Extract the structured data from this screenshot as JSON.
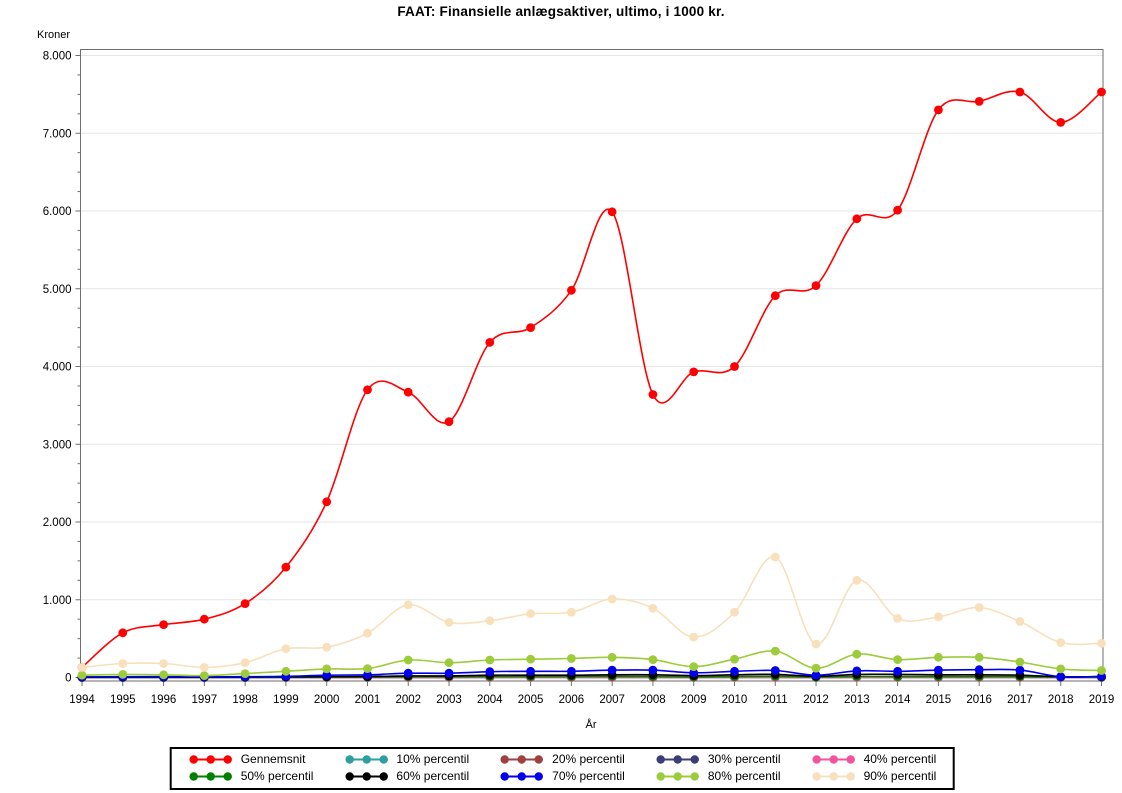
{
  "chart_data": {
    "type": "line",
    "title": "FAAT: Finansielle anlægsaktiver, ultimo, i 1000 kr.",
    "xlabel": "År",
    "ylabel": "Kroner",
    "x": [
      1994,
      1995,
      1996,
      1997,
      1998,
      1999,
      2000,
      2001,
      2002,
      2003,
      2004,
      2005,
      2006,
      2007,
      2008,
      2009,
      2010,
      2011,
      2012,
      2013,
      2014,
      2015,
      2016,
      2017,
      2018,
      2019
    ],
    "ylim": [
      0,
      8000
    ],
    "ytick_interval": 1000,
    "ytick_minor_interval": 250,
    "ytick_labels": [
      "0",
      "1.000",
      "2.000",
      "3.000",
      "4.000",
      "5.000",
      "6.000",
      "7.000",
      "8.000"
    ],
    "grid": true,
    "grid_color": "#E6E6E6",
    "frame_color": "#6E6E6E",
    "legend_position": "bottom",
    "marker": "circle",
    "smooth": true,
    "series": [
      {
        "name": "Gennemsnit",
        "color": "#FF0000",
        "values": [
          130,
          575,
          680,
          750,
          950,
          1420,
          2260,
          3700,
          3670,
          3290,
          4310,
          4500,
          4980,
          5990,
          3640,
          3930,
          4000,
          4910,
          5040,
          5900,
          6010,
          7300,
          7410,
          7530,
          7140,
          7530
        ]
      },
      {
        "name": "10% percentil",
        "color": "#2E9E9E",
        "values": [
          0,
          0,
          0,
          0,
          0,
          0,
          0,
          0,
          0,
          0,
          0,
          0,
          0,
          0,
          0,
          0,
          0,
          0,
          0,
          0,
          0,
          0,
          0,
          0,
          0,
          0
        ]
      },
      {
        "name": "20% percentil",
        "color": "#A04040",
        "values": [
          0,
          0,
          0,
          0,
          0,
          0,
          1,
          1,
          1,
          1,
          2,
          2,
          2,
          2,
          2,
          1,
          2,
          2,
          1,
          2,
          2,
          2,
          2,
          2,
          1,
          1
        ]
      },
      {
        "name": "30% percentil",
        "color": "#3C3C78",
        "values": [
          1,
          1,
          1,
          1,
          1,
          1,
          2,
          2,
          3,
          3,
          4,
          4,
          4,
          5,
          5,
          3,
          5,
          6,
          2,
          5,
          5,
          5,
          5,
          4,
          2,
          2
        ]
      },
      {
        "name": "40% percentil",
        "color": "#F2549C",
        "values": [
          0,
          0,
          0,
          0,
          0,
          0,
          0,
          0,
          0,
          0,
          0,
          0,
          0,
          0,
          0,
          0,
          0,
          0,
          0,
          0,
          0,
          0,
          0,
          0,
          0,
          0
        ]
      },
      {
        "name": "50% percentil",
        "color": "#008000",
        "values": [
          2,
          2,
          2,
          2,
          3,
          4,
          5,
          6,
          10,
          10,
          12,
          12,
          12,
          14,
          12,
          8,
          12,
          15,
          5,
          14,
          12,
          12,
          12,
          10,
          5,
          5
        ]
      },
      {
        "name": "60% percentil",
        "color": "#000000",
        "values": [
          4,
          5,
          5,
          4,
          5,
          8,
          10,
          12,
          20,
          20,
          30,
          30,
          30,
          35,
          35,
          25,
          35,
          40,
          15,
          40,
          40,
          35,
          35,
          30,
          10,
          10
        ]
      },
      {
        "name": "70% percentil",
        "color": "#0000EE",
        "values": [
          8,
          10,
          10,
          8,
          10,
          15,
          30,
          35,
          55,
          55,
          75,
          80,
          80,
          95,
          95,
          60,
          80,
          90,
          30,
          85,
          80,
          95,
          100,
          95,
          10,
          15
        ]
      },
      {
        "name": "80% percentil",
        "color": "#9CCB3B",
        "values": [
          30,
          40,
          35,
          25,
          50,
          80,
          110,
          115,
          225,
          190,
          225,
          235,
          245,
          260,
          230,
          140,
          235,
          340,
          120,
          300,
          230,
          260,
          260,
          200,
          110,
          90
        ]
      },
      {
        "name": "90% percentil",
        "color": "#F8E0BC",
        "values": [
          130,
          180,
          180,
          130,
          190,
          370,
          390,
          570,
          935,
          710,
          730,
          820,
          840,
          1010,
          890,
          520,
          840,
          1550,
          430,
          1250,
          760,
          780,
          900,
          720,
          450,
          440
        ]
      }
    ]
  }
}
